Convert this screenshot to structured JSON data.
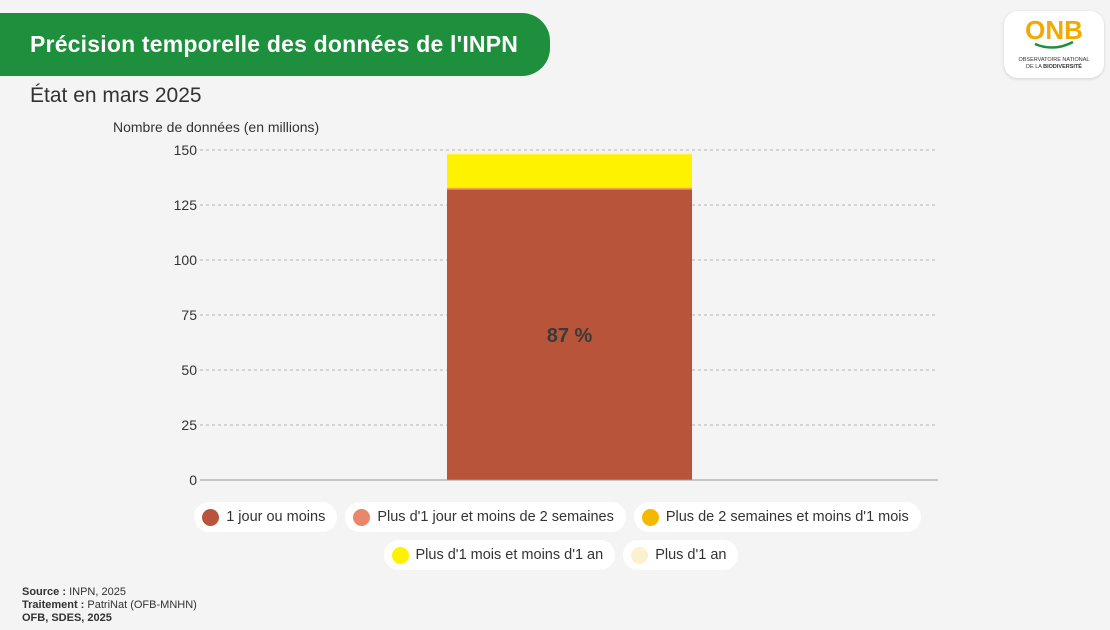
{
  "header": {
    "title": "Précision temporelle des données de l'INPN",
    "subtitle": "État en mars 2025"
  },
  "logo": {
    "brand": "ONB",
    "line1": "OBSERVATOIRE NATIONAL",
    "line2_prefix": "DE LA ",
    "line2_bold": "BIODIVERSITÉ"
  },
  "chart_data": {
    "type": "bar",
    "stacked": true,
    "categories": [
      ""
    ],
    "series": [
      {
        "name": "1 jour ou moins",
        "values": [
          132
        ],
        "color": "#b8543a",
        "label": "87 %"
      },
      {
        "name": "Plus d'1 jour et moins de 2 semaines",
        "values": [
          0.6
        ],
        "color": "#ec8668",
        "label": ""
      },
      {
        "name": "Plus de 2 semaines et moins d'1 mois",
        "values": [
          0.3
        ],
        "color": "#f5b800",
        "label": ""
      },
      {
        "name": "Plus d'1 mois et moins d'1 an",
        "values": [
          15.2
        ],
        "color": "#fff200",
        "label": ""
      },
      {
        "name": "Plus d'1 an",
        "values": [
          0.8
        ],
        "color": "#fbf1cf",
        "label": ""
      }
    ],
    "ylabel": "Nombre de données (en millions)",
    "ylim": [
      0,
      150
    ],
    "yticks": [
      0,
      25,
      50,
      75,
      100,
      125,
      150
    ],
    "grid": true,
    "legend_position": "bottom"
  },
  "footer": {
    "source_label": "Source :",
    "source_value": "INPN, 2025",
    "treatment_label": "Traitement :",
    "treatment_value": "PatriNat (OFB-MNHN)",
    "credit": "OFB, SDES, 2025"
  }
}
